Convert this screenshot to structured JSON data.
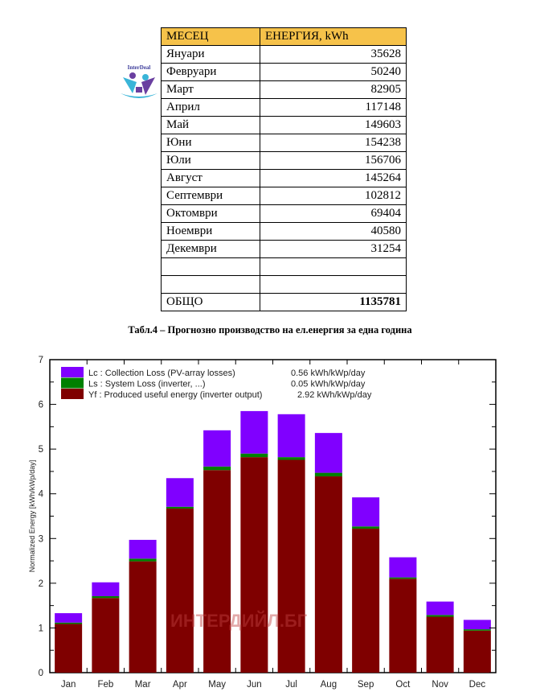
{
  "logo": {
    "text": "InterDeal"
  },
  "table": {
    "headers": [
      "МЕСЕЦ",
      "ЕНЕРГИЯ, kWh"
    ],
    "rows": [
      [
        "Януари",
        "35628"
      ],
      [
        "Февруари",
        "50240"
      ],
      [
        "Март",
        "82905"
      ],
      [
        "Април",
        "117148"
      ],
      [
        "Май",
        "149603"
      ],
      [
        "Юни",
        "154238"
      ],
      [
        "Юли",
        "156706"
      ],
      [
        "Август",
        "145264"
      ],
      [
        "Септември",
        "102812"
      ],
      [
        "Октомври",
        "69404"
      ],
      [
        "Ноември",
        "40580"
      ],
      [
        "Декември",
        "31254"
      ],
      [
        "",
        ""
      ],
      [
        "",
        ""
      ]
    ],
    "total": [
      "ОБЩО",
      "1135781"
    ]
  },
  "caption": "Табл.4 – Прогнозно производство на ел.енергия за една година",
  "chart_data": {
    "type": "bar",
    "stacked": true,
    "ylabel": "Normalized Energy [kWh/kWp/day]",
    "ylim": [
      0,
      7
    ],
    "yticks": [
      "0",
      "1",
      "2",
      "3",
      "4",
      "5",
      "6",
      "7"
    ],
    "categories": [
      "Jan",
      "Feb",
      "Mar",
      "Apr",
      "May",
      "Jun",
      "Jul",
      "Aug",
      "Sep",
      "Oct",
      "Nov",
      "Dec"
    ],
    "legend_position": "top-left",
    "watermark": "ИНТЕРДИЙЛ.БГ",
    "series": [
      {
        "name": "Yf : Produced useful energy  (inverter output)",
        "value_label": "2.92 kWh/kWp/day",
        "color": "#7f0000",
        "values": [
          1.09,
          1.67,
          2.49,
          3.67,
          4.53,
          4.82,
          4.76,
          4.39,
          3.22,
          2.1,
          1.25,
          0.94
        ]
      },
      {
        "name": "Ls : System Loss  (inverter, ...)",
        "value_label": "0.05 kWh/kWp/day",
        "color": "#008000",
        "values": [
          0.03,
          0.04,
          0.06,
          0.04,
          0.08,
          0.08,
          0.06,
          0.08,
          0.05,
          0.03,
          0.04,
          0.03
        ]
      },
      {
        "name": "Lc : Collection Loss (PV-array losses)",
        "value_label": "0.56 kWh/kWp/day",
        "color": "#8000ff",
        "values": [
          0.21,
          0.31,
          0.42,
          0.64,
          0.81,
          0.95,
          0.96,
          0.89,
          0.65,
          0.45,
          0.3,
          0.21
        ]
      }
    ]
  }
}
